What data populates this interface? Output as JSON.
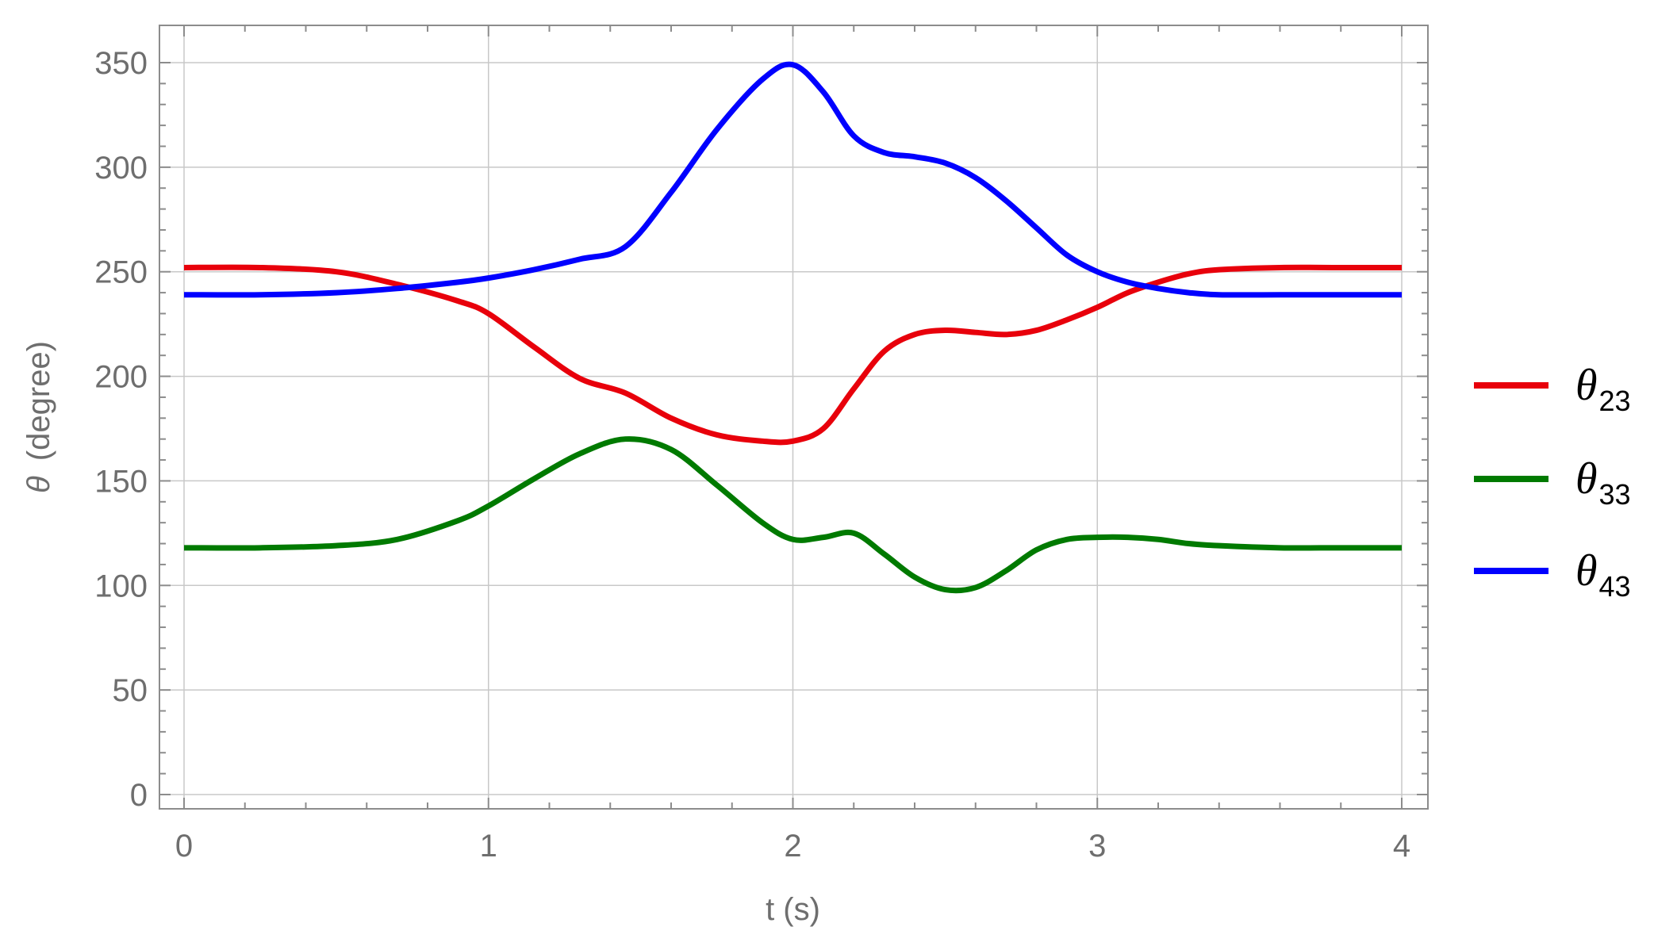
{
  "chart_data": {
    "type": "line",
    "title": "",
    "xlabel": "t (s)",
    "ylabel_symbol": "θ",
    "ylabel_text": "(degree)",
    "xlim": [
      0,
      4
    ],
    "ylim": [
      0,
      360
    ],
    "x_ticks": [
      0,
      1,
      2,
      3,
      4
    ],
    "y_ticks": [
      0,
      50,
      100,
      150,
      200,
      250,
      300,
      350
    ],
    "grid": true,
    "frame": true,
    "legend_position": "right",
    "x": [
      0,
      0.25,
      0.5,
      0.7,
      0.9,
      1.0,
      1.15,
      1.3,
      1.45,
      1.6,
      1.75,
      1.9,
      2.0,
      2.1,
      2.2,
      2.3,
      2.4,
      2.5,
      2.6,
      2.7,
      2.8,
      2.9,
      3.0,
      3.1,
      3.2,
      3.3,
      3.4,
      3.6,
      3.8,
      4.0
    ],
    "series": [
      {
        "name_symbol": "θ",
        "name_sub": "23",
        "color": "#e8000b",
        "values": [
          252,
          252,
          250,
          244,
          236,
          230,
          214,
          199,
          192,
          180,
          172,
          169,
          169,
          175,
          194,
          212,
          220,
          222,
          221,
          220,
          222,
          227,
          233,
          240,
          245,
          249,
          251,
          252,
          252,
          252
        ]
      },
      {
        "name_symbol": "θ",
        "name_sub": "33",
        "color": "#007a00",
        "values": [
          118,
          118,
          119,
          122,
          131,
          138,
          151,
          163,
          170,
          165,
          148,
          130,
          122,
          123,
          125,
          115,
          104,
          98,
          99,
          107,
          117,
          122,
          123,
          123,
          122,
          120,
          119,
          118,
          118,
          118
        ]
      },
      {
        "name_symbol": "θ",
        "name_sub": "43",
        "color": "#0000ff",
        "values": [
          239,
          239,
          240,
          242,
          245,
          247,
          251,
          256,
          262,
          288,
          318,
          342,
          349,
          336,
          315,
          307,
          305,
          302,
          295,
          284,
          271,
          258,
          250,
          245,
          242,
          240,
          239,
          239,
          239,
          239
        ]
      }
    ]
  }
}
